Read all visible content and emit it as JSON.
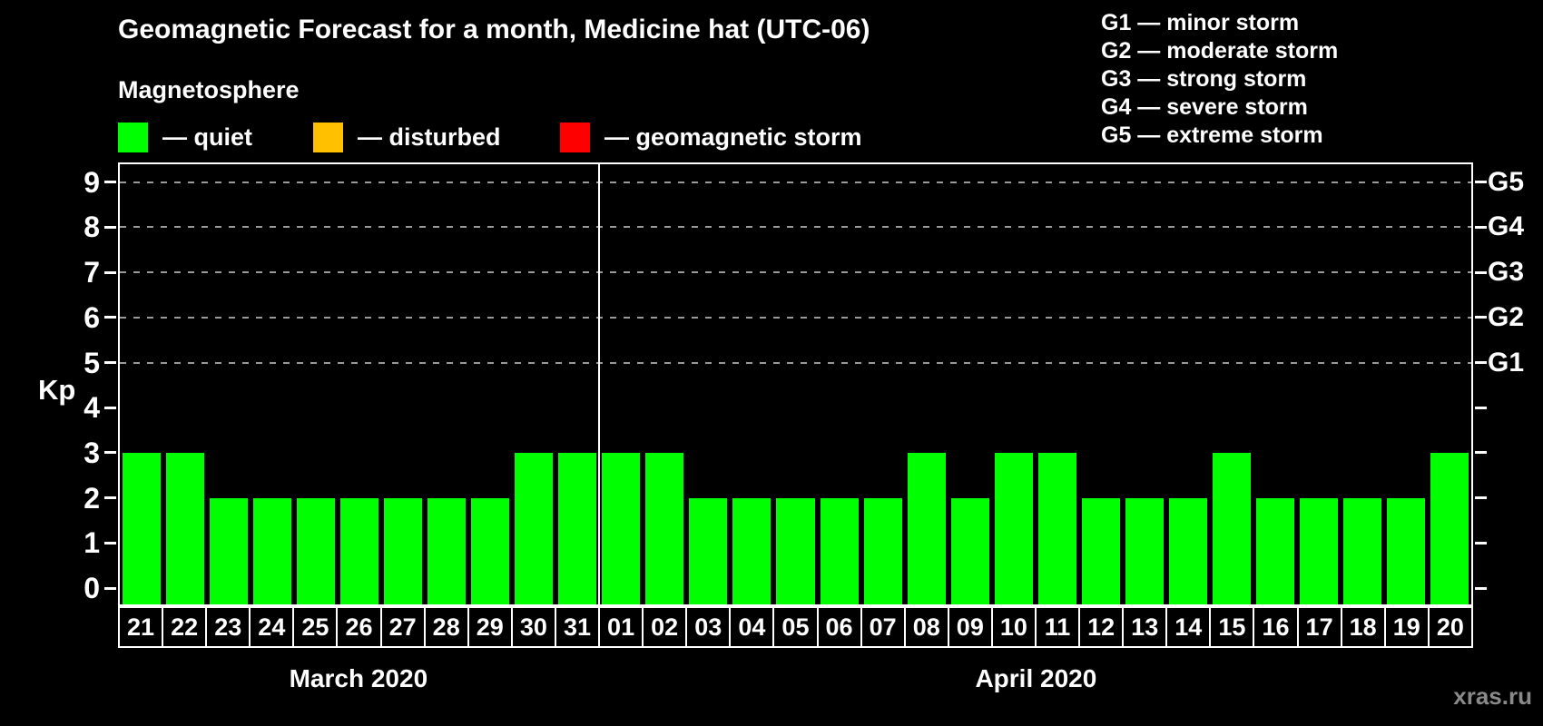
{
  "title": "Geomagnetic Forecast for a month, Medicine hat (UTC-06)",
  "legend": {
    "heading": "Magnetosphere",
    "items": [
      {
        "label": "— quiet",
        "status": "quiet"
      },
      {
        "label": "— disturbed",
        "status": "disturbed"
      },
      {
        "label": "— geomagnetic storm",
        "status": "storm"
      }
    ]
  },
  "g_legend": [
    "G1 — minor storm",
    "G2 — moderate storm",
    "G3 — strong storm",
    "G4 — severe storm",
    "G5 — extreme storm"
  ],
  "colors": {
    "quiet": "#00ff00",
    "disturbed": "#ffc000",
    "storm": "#ff0000",
    "grid": "#9a9a9a",
    "axis": "#ffffff"
  },
  "chart_data": {
    "type": "bar",
    "title": "Geomagnetic Forecast for a month, Medicine hat (UTC-06)",
    "ylabel": "Kp",
    "xlabel": "",
    "ylim": [
      0,
      9
    ],
    "yticks": [
      0,
      1,
      2,
      3,
      4,
      5,
      6,
      7,
      8,
      9
    ],
    "gridlines": [
      5,
      6,
      7,
      8,
      9
    ],
    "grid": "dashed, only at G-storm levels 5-9",
    "legend_position": "top",
    "right_axis_labels": {
      "5": "G1",
      "6": "G2",
      "7": "G3",
      "8": "G4",
      "9": "G5"
    },
    "categories": [
      "21",
      "22",
      "23",
      "24",
      "25",
      "26",
      "27",
      "28",
      "29",
      "30",
      "31",
      "01",
      "02",
      "03",
      "04",
      "05",
      "06",
      "07",
      "08",
      "09",
      "10",
      "11",
      "12",
      "13",
      "14",
      "15",
      "16",
      "17",
      "18",
      "19",
      "20"
    ],
    "values": [
      3,
      3,
      2,
      2,
      2,
      2,
      2,
      2,
      2,
      3,
      3,
      3,
      3,
      2,
      2,
      2,
      2,
      2,
      3,
      2,
      3,
      3,
      2,
      2,
      2,
      3,
      2,
      2,
      2,
      2,
      3
    ],
    "statuses": [
      "quiet",
      "quiet",
      "quiet",
      "quiet",
      "quiet",
      "quiet",
      "quiet",
      "quiet",
      "quiet",
      "quiet",
      "quiet",
      "quiet",
      "quiet",
      "quiet",
      "quiet",
      "quiet",
      "quiet",
      "quiet",
      "quiet",
      "quiet",
      "quiet",
      "quiet",
      "quiet",
      "quiet",
      "quiet",
      "quiet",
      "quiet",
      "quiet",
      "quiet",
      "quiet",
      "quiet"
    ],
    "months": [
      {
        "label": "March 2020",
        "days": 11
      },
      {
        "label": "April 2020",
        "days": 20
      }
    ]
  },
  "watermark": "xras.ru"
}
